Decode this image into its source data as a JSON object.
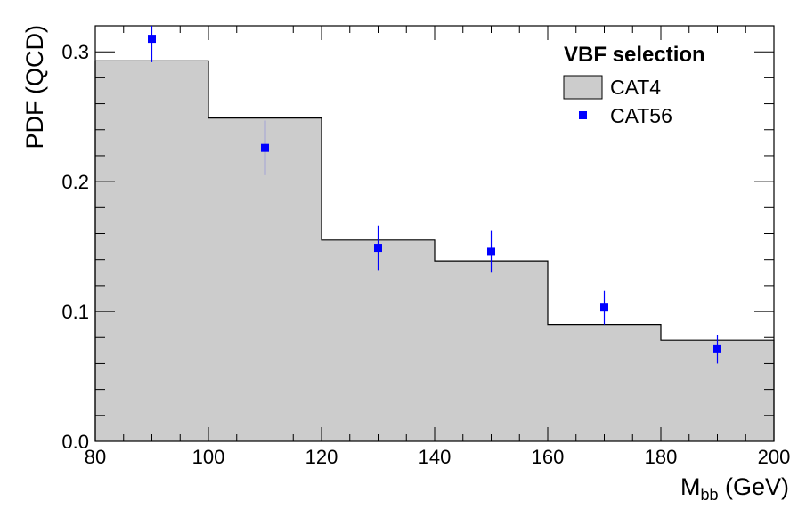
{
  "chart_data": {
    "type": "bar",
    "title": "",
    "xlabel": "M",
    "xlabel_sub": "bb",
    "xlabel_unit": " (GeV)",
    "ylabel": "PDF (QCD)",
    "xlim": [
      80,
      200
    ],
    "ylim": [
      0,
      0.32
    ],
    "x_ticks": [
      "80",
      "100",
      "120",
      "140",
      "160",
      "180",
      "200"
    ],
    "y_ticks": [
      "0.0",
      "0.1",
      "0.2",
      "0.3"
    ],
    "legend_header": "VBF selection",
    "legend_position": "top-right",
    "grid": false,
    "bins": [
      [
        80,
        100
      ],
      [
        100,
        120
      ],
      [
        120,
        140
      ],
      [
        140,
        160
      ],
      [
        160,
        180
      ],
      [
        180,
        200
      ]
    ],
    "series": [
      {
        "name": "CAT4",
        "style": "histogram",
        "color": "#cccccc",
        "values": [
          0.293,
          0.249,
          0.155,
          0.139,
          0.09,
          0.078
        ]
      },
      {
        "name": "CAT56",
        "style": "points-with-errors",
        "color": "#0000ff",
        "x": [
          90,
          110,
          130,
          150,
          170,
          190
        ],
        "values": [
          0.31,
          0.226,
          0.149,
          0.146,
          0.103,
          0.071
        ],
        "errors": [
          0.018,
          0.021,
          0.017,
          0.016,
          0.013,
          0.011
        ]
      }
    ]
  }
}
